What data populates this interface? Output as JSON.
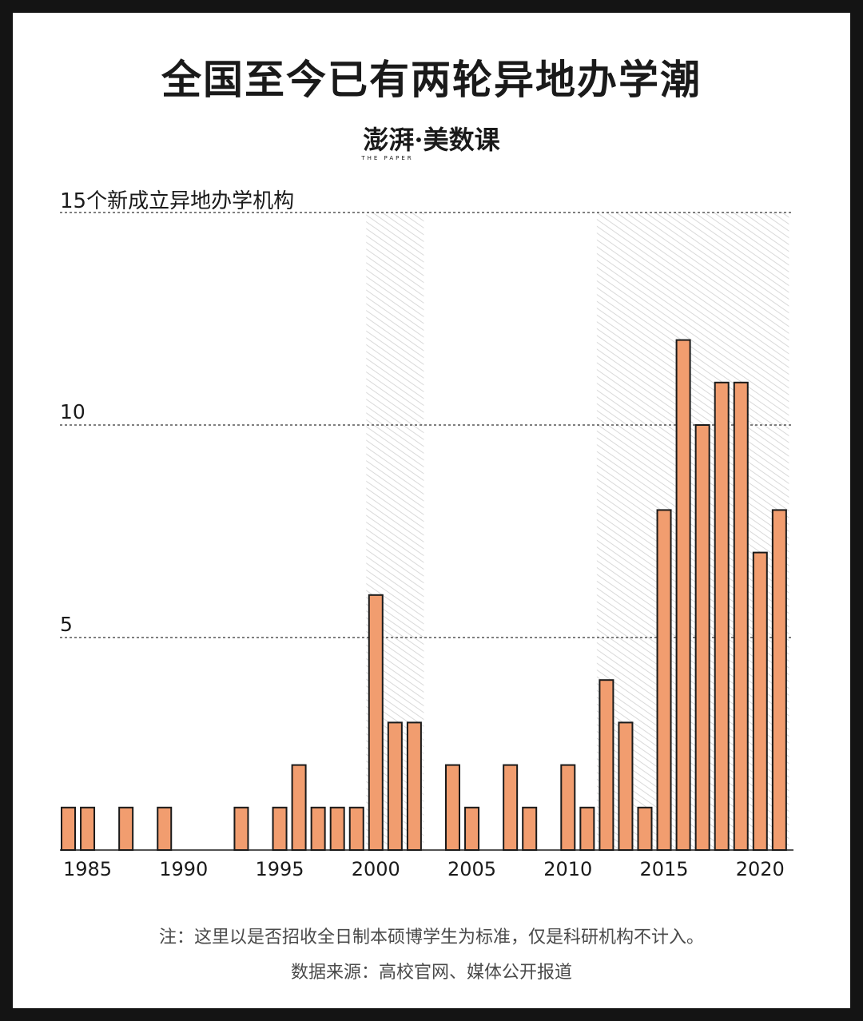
{
  "title": "全国至今已有两轮异地办学潮",
  "brand": {
    "logo_text": "澎湃",
    "separator": "·",
    "product": "美数课",
    "tagline": "THE PAPER"
  },
  "chart_data": {
    "type": "bar",
    "ylabel": "15个新成立异地办学机构",
    "ylim": [
      0,
      15
    ],
    "yticks": [
      5,
      10
    ],
    "xtick_labels": [
      "1985",
      "1990",
      "1995",
      "2000",
      "2005",
      "2010",
      "2015",
      "2020"
    ],
    "x": [
      1984,
      1985,
      1986,
      1987,
      1988,
      1989,
      1990,
      1991,
      1992,
      1993,
      1994,
      1995,
      1996,
      1997,
      1998,
      1999,
      2000,
      2001,
      2002,
      2003,
      2004,
      2005,
      2006,
      2007,
      2008,
      2009,
      2010,
      2011,
      2012,
      2013,
      2014,
      2015,
      2016,
      2017,
      2018,
      2019,
      2020,
      2021
    ],
    "values": [
      1,
      1,
      0,
      1,
      0,
      1,
      0,
      0,
      0,
      1,
      0,
      1,
      2,
      1,
      1,
      1,
      6,
      3,
      3,
      0,
      2,
      1,
      0,
      2,
      1,
      0,
      2,
      1,
      4,
      3,
      1,
      8,
      12,
      10,
      11,
      11,
      7,
      8
    ],
    "highlight_periods": [
      [
        1999.5,
        2002.5
      ],
      [
        2011.5,
        2021.5
      ]
    ],
    "colors": {
      "bar": "#f19d6f",
      "bar_edge": "#1a1a1a",
      "highlight": "#e6e6e6",
      "grid": "#333333"
    }
  },
  "footer": {
    "note": "注：这里以是否招收全日制本硕博学生为标准，仅是科研机构不计入。",
    "source": "数据来源：高校官网、媒体公开报道"
  }
}
